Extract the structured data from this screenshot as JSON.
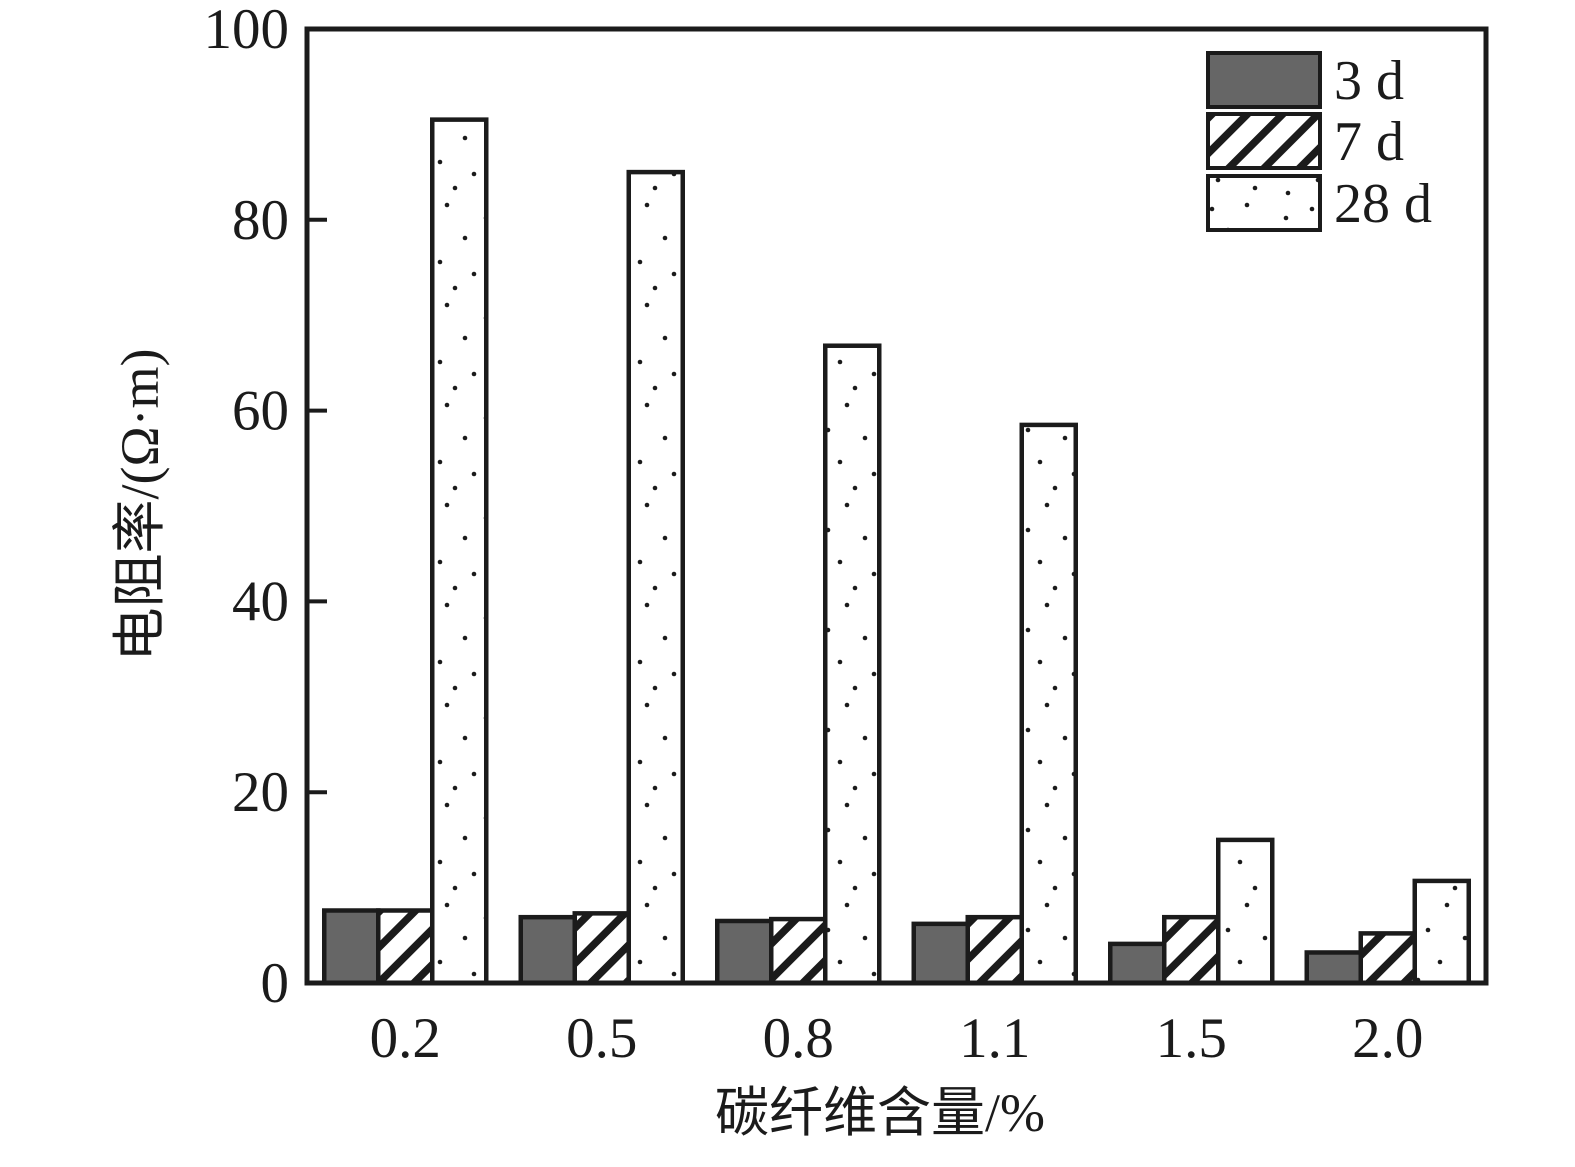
{
  "chart_data": {
    "type": "bar",
    "title": "",
    "categories": [
      "0.2",
      "0.5",
      "0.8",
      "1.1",
      "1.5",
      "2.0"
    ],
    "series": [
      {
        "name": "3 d",
        "pattern": "solid",
        "values": [
          7.6,
          6.9,
          6.5,
          6.2,
          4.1,
          3.2
        ]
      },
      {
        "name": "7 d",
        "pattern": "hatch",
        "values": [
          7.6,
          7.3,
          6.7,
          6.9,
          6.9,
          5.2
        ]
      },
      {
        "name": "28 d",
        "pattern": "dots",
        "values": [
          90.5,
          85.0,
          66.8,
          58.5,
          15.0,
          10.7
        ]
      }
    ],
    "xlabel": "碳纤维含量/%",
    "ylabel": "电阻率/(Ω·m)",
    "ylim": [
      0,
      100
    ],
    "yticks": [
      0,
      20,
      40,
      60,
      80,
      100
    ],
    "legend_position": "top-right-inside",
    "grid": false,
    "colors": {
      "bar_solid": "#666666",
      "outline": "#1b1b1b",
      "background": "#ffffff"
    }
  }
}
